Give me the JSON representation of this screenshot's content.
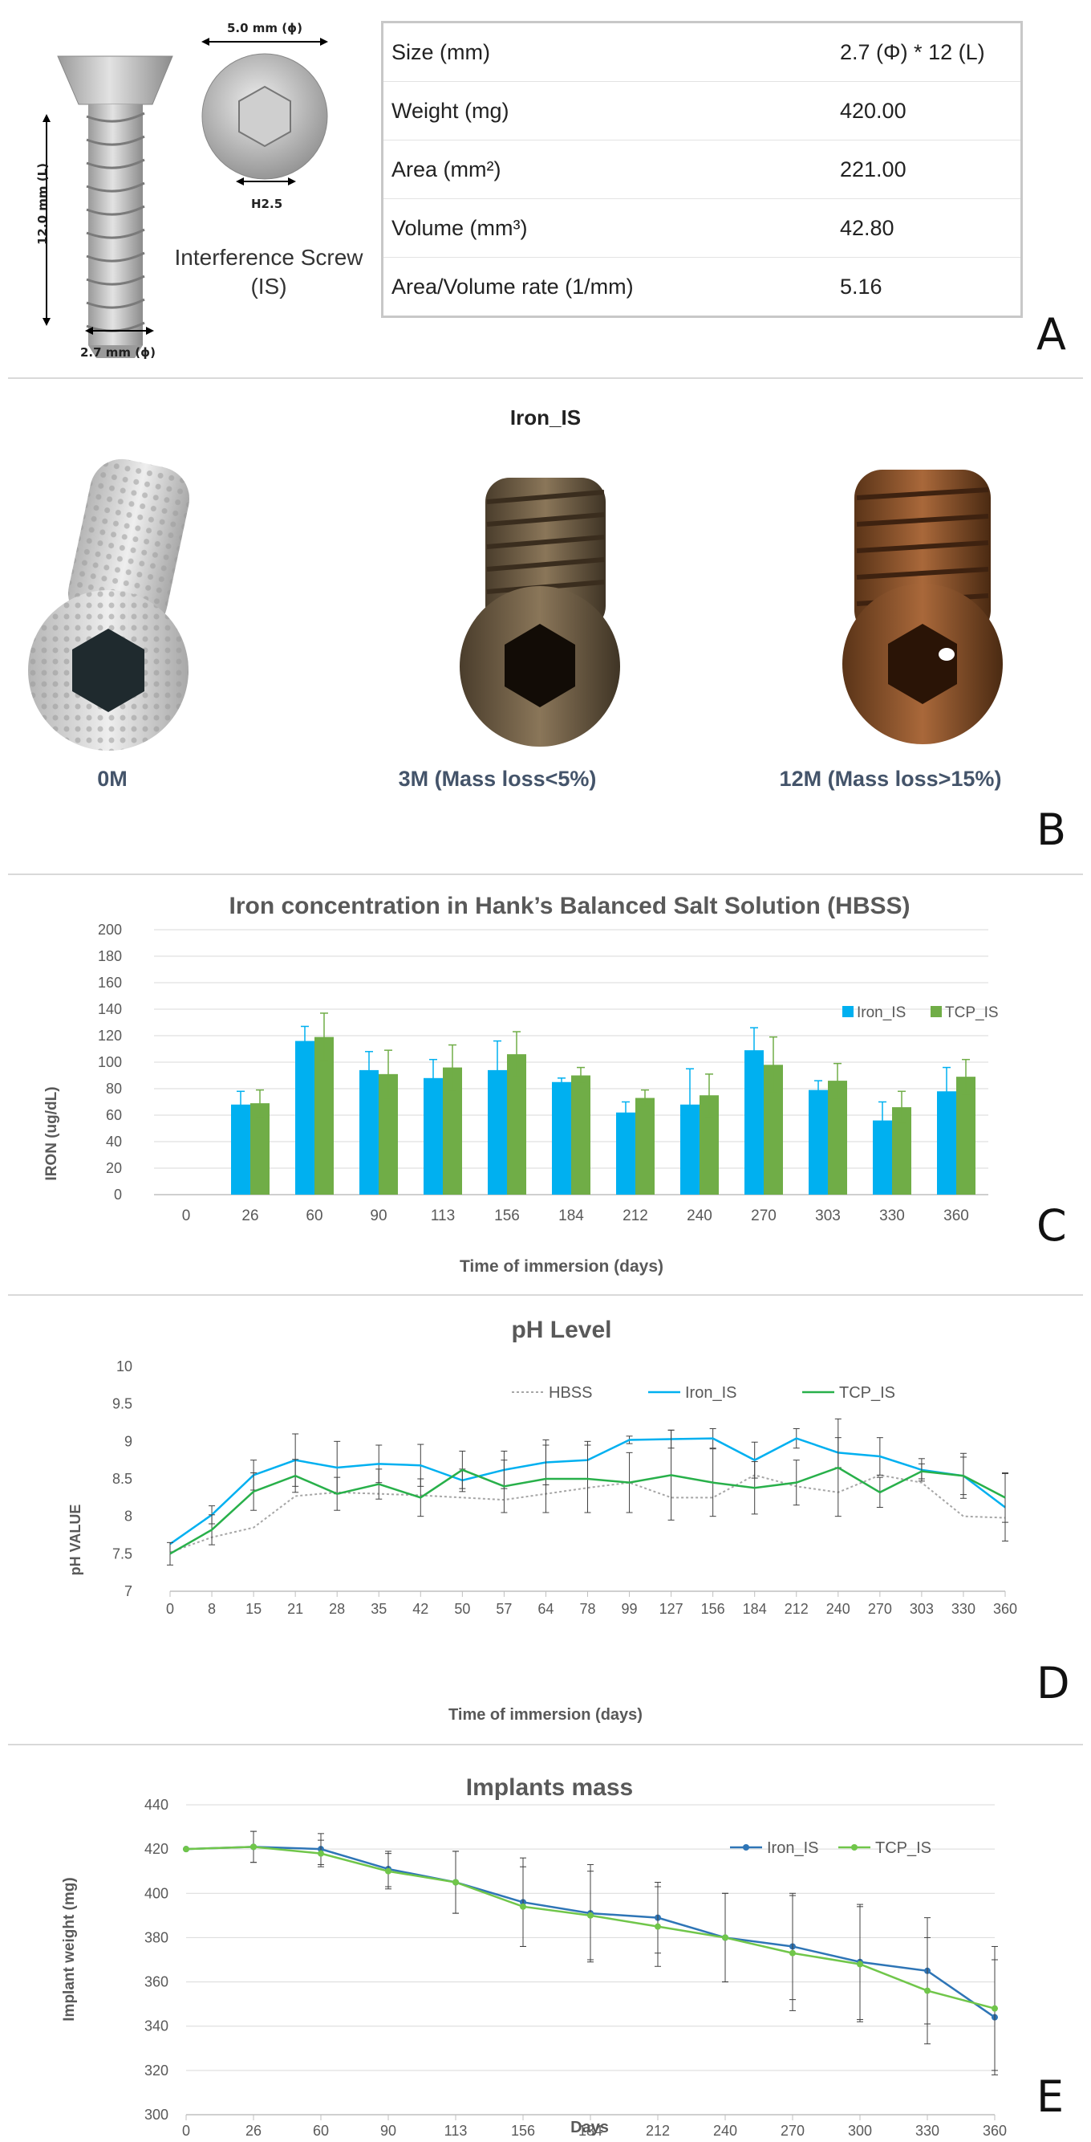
{
  "panel_labels": {
    "a": "A",
    "b": "B",
    "c": "C",
    "d": "D",
    "e": "E"
  },
  "screw": {
    "head_diameter": "5.0 mm (ϕ)",
    "length": "12.0 mm (L)",
    "shaft_diameter": "2.7 mm (ϕ)",
    "hex_size": "H2.5",
    "caption_line1": "Interference Screw",
    "caption_line2": "(IS)"
  },
  "spec_table": [
    {
      "label": "Size (mm)",
      "value": "2.7 (Φ) * 12 (L)"
    },
    {
      "label": "Weight (mg)",
      "value": "420.00"
    },
    {
      "label": "Area (mm²)",
      "value": "221.00"
    },
    {
      "label": "Volume (mm³)",
      "value": "42.80"
    },
    {
      "label": "Area/Volume rate (1/mm)",
      "value": "5.16"
    }
  ],
  "photos": {
    "title": "Iron_IS",
    "items": [
      {
        "label": "0M"
      },
      {
        "label": "3M (Mass loss<5%)"
      },
      {
        "label": "12M (Mass loss>15%)"
      }
    ]
  },
  "colors": {
    "iron": "#00b0f0",
    "tcp": "#70ad47",
    "tcp_line": "#28b04a",
    "hbss": "#a6a6a6",
    "iron_mass": "#2e75b6",
    "tcp_mass": "#70c64a"
  },
  "chart_data": [
    {
      "id": "iron",
      "type": "bar",
      "title": "Iron concentration in Hank’s Balanced Salt Solution (HBSS)",
      "xlabel": "Time of immersion (days)",
      "ylabel": "IRON (ug/dL)",
      "ylim": [
        0,
        200
      ],
      "yticks": [
        0,
        20,
        40,
        60,
        80,
        100,
        120,
        140,
        160,
        180,
        200
      ],
      "categories": [
        "0",
        "26",
        "60",
        "90",
        "113",
        "156",
        "184",
        "212",
        "240",
        "270",
        "303",
        "330",
        "360"
      ],
      "series": [
        {
          "name": "Iron_IS",
          "values": [
            0,
            68,
            116,
            94,
            88,
            94,
            85,
            62,
            68,
            109,
            79,
            56,
            78
          ],
          "errors": [
            0,
            10,
            11,
            14,
            14,
            22,
            3,
            8,
            27,
            17,
            7,
            14,
            18
          ]
        },
        {
          "name": "TCP_IS",
          "values": [
            0,
            69,
            119,
            91,
            96,
            106,
            90,
            73,
            75,
            98,
            86,
            66,
            89
          ],
          "errors": [
            0,
            10,
            18,
            18,
            17,
            17,
            6,
            6,
            16,
            21,
            13,
            12,
            13
          ]
        }
      ],
      "legend": "right"
    },
    {
      "id": "ph",
      "type": "line",
      "title": "pH Level",
      "xlabel": "Time of immersion (days)",
      "ylabel": "pH VALUE",
      "ylim": [
        7,
        10
      ],
      "yticks": [
        "7",
        "7.5",
        "8",
        "8.5",
        "9",
        "9.5",
        "10"
      ],
      "x": [
        "0",
        "8",
        "15",
        "21",
        "28",
        "35",
        "42",
        "50",
        "57",
        "64",
        "78",
        "99",
        "127",
        "156",
        "184",
        "212",
        "240",
        "270",
        "303",
        "330",
        "360"
      ],
      "series": [
        {
          "name": "HBSS",
          "values": [
            7.52,
            7.72,
            7.85,
            8.27,
            8.32,
            8.3,
            8.28,
            8.25,
            8.22,
            8.3,
            8.38,
            8.45,
            8.25,
            8.25,
            8.55,
            8.4,
            8.32,
            8.55,
            8.45,
            8.0,
            7.98
          ],
          "errors": [
            0,
            0,
            0,
            0,
            0,
            0,
            0,
            0,
            0,
            0,
            0,
            0,
            0,
            0,
            0,
            0,
            0,
            0,
            0,
            0,
            0
          ]
        },
        {
          "name": "Iron_IS",
          "values": [
            7.63,
            8.02,
            8.55,
            8.75,
            8.65,
            8.7,
            8.68,
            8.48,
            8.62,
            8.72,
            8.75,
            9.02,
            9.03,
            9.04,
            8.75,
            9.04,
            8.85,
            8.8,
            8.62,
            8.54,
            8.12
          ],
          "errors": [
            0,
            0.12,
            0.2,
            0.35,
            0.35,
            0.25,
            0.28,
            0.15,
            0.25,
            0.3,
            0.25,
            0.05,
            0.12,
            0.13,
            0.24,
            0.13,
            0.2,
            0.25,
            0.15,
            0.3,
            0.45
          ]
        },
        {
          "name": "TCP_IS",
          "values": [
            7.5,
            7.82,
            8.33,
            8.54,
            8.3,
            8.43,
            8.25,
            8.62,
            8.4,
            8.5,
            8.5,
            8.45,
            8.55,
            8.45,
            8.38,
            8.45,
            8.65,
            8.32,
            8.6,
            8.54,
            8.25
          ],
          "errors": [
            0.15,
            0.2,
            0.25,
            0.22,
            0.22,
            0.2,
            0.25,
            0.25,
            0.35,
            0.45,
            0.45,
            0.4,
            0.6,
            0.45,
            0.35,
            0.3,
            0.65,
            0.2,
            0.1,
            0.25,
            0.33
          ]
        }
      ],
      "legend": "top"
    },
    {
      "id": "mass",
      "type": "line",
      "title": "Implants mass",
      "xlabel": "Days",
      "ylabel": "Implant weight (mg)",
      "ylim": [
        300,
        440
      ],
      "yticks": [
        300,
        320,
        340,
        360,
        380,
        400,
        420,
        440
      ],
      "x": [
        "0",
        "26",
        "60",
        "90",
        "113",
        "156",
        "184",
        "212",
        "240",
        "270",
        "300",
        "330",
        "360"
      ],
      "series": [
        {
          "name": "Iron_IS",
          "values": [
            420,
            421,
            420,
            411,
            405,
            396,
            391,
            389,
            380,
            376,
            369,
            365,
            344
          ],
          "errors": [
            0,
            7,
            7,
            8,
            14,
            20,
            22,
            16,
            20,
            24,
            26,
            24,
            26
          ]
        },
        {
          "name": "TCP_IS",
          "values": [
            420,
            421,
            418,
            410,
            405,
            394,
            390,
            385,
            380,
            373,
            368,
            356,
            348
          ],
          "errors": [
            0,
            7,
            6,
            8,
            14,
            18,
            20,
            18,
            20,
            26,
            26,
            24,
            28
          ]
        }
      ],
      "legend": "top-right"
    }
  ]
}
